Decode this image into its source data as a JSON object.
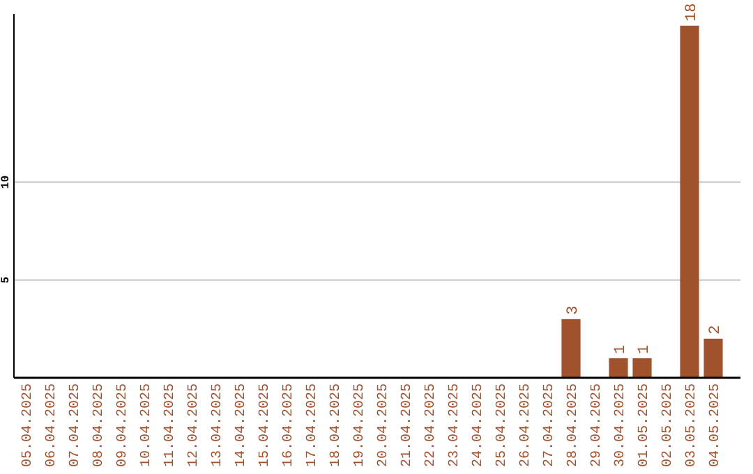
{
  "chart_data": {
    "type": "bar",
    "categories": [
      "05.04.2025",
      "06.04.2025",
      "07.04.2025",
      "08.04.2025",
      "09.04.2025",
      "10.04.2025",
      "11.04.2025",
      "12.04.2025",
      "13.04.2025",
      "14.04.2025",
      "15.04.2025",
      "16.04.2025",
      "17.04.2025",
      "18.04.2025",
      "19.04.2025",
      "20.04.2025",
      "21.04.2025",
      "22.04.2025",
      "23.04.2025",
      "24.04.2025",
      "25.04.2025",
      "26.04.2025",
      "27.04.2025",
      "28.04.2025",
      "29.04.2025",
      "30.04.2025",
      "01.05.2025",
      "02.05.2025",
      "03.05.2025",
      "04.05.2025"
    ],
    "values": [
      0,
      0,
      0,
      0,
      0,
      0,
      0,
      0,
      0,
      0,
      0,
      0,
      0,
      0,
      0,
      0,
      0,
      0,
      0,
      0,
      0,
      0,
      0,
      3,
      0,
      1,
      1,
      0,
      18,
      2
    ],
    "value_labels": [
      null,
      null,
      null,
      null,
      null,
      null,
      null,
      null,
      null,
      null,
      null,
      null,
      null,
      null,
      null,
      null,
      null,
      null,
      null,
      null,
      null,
      null,
      null,
      "3",
      null,
      "1",
      "1",
      null,
      "18",
      "2"
    ],
    "color": "#a0522d",
    "ylim": [
      0,
      18.6
    ],
    "yticks": [
      5,
      10
    ],
    "grid": "y"
  }
}
